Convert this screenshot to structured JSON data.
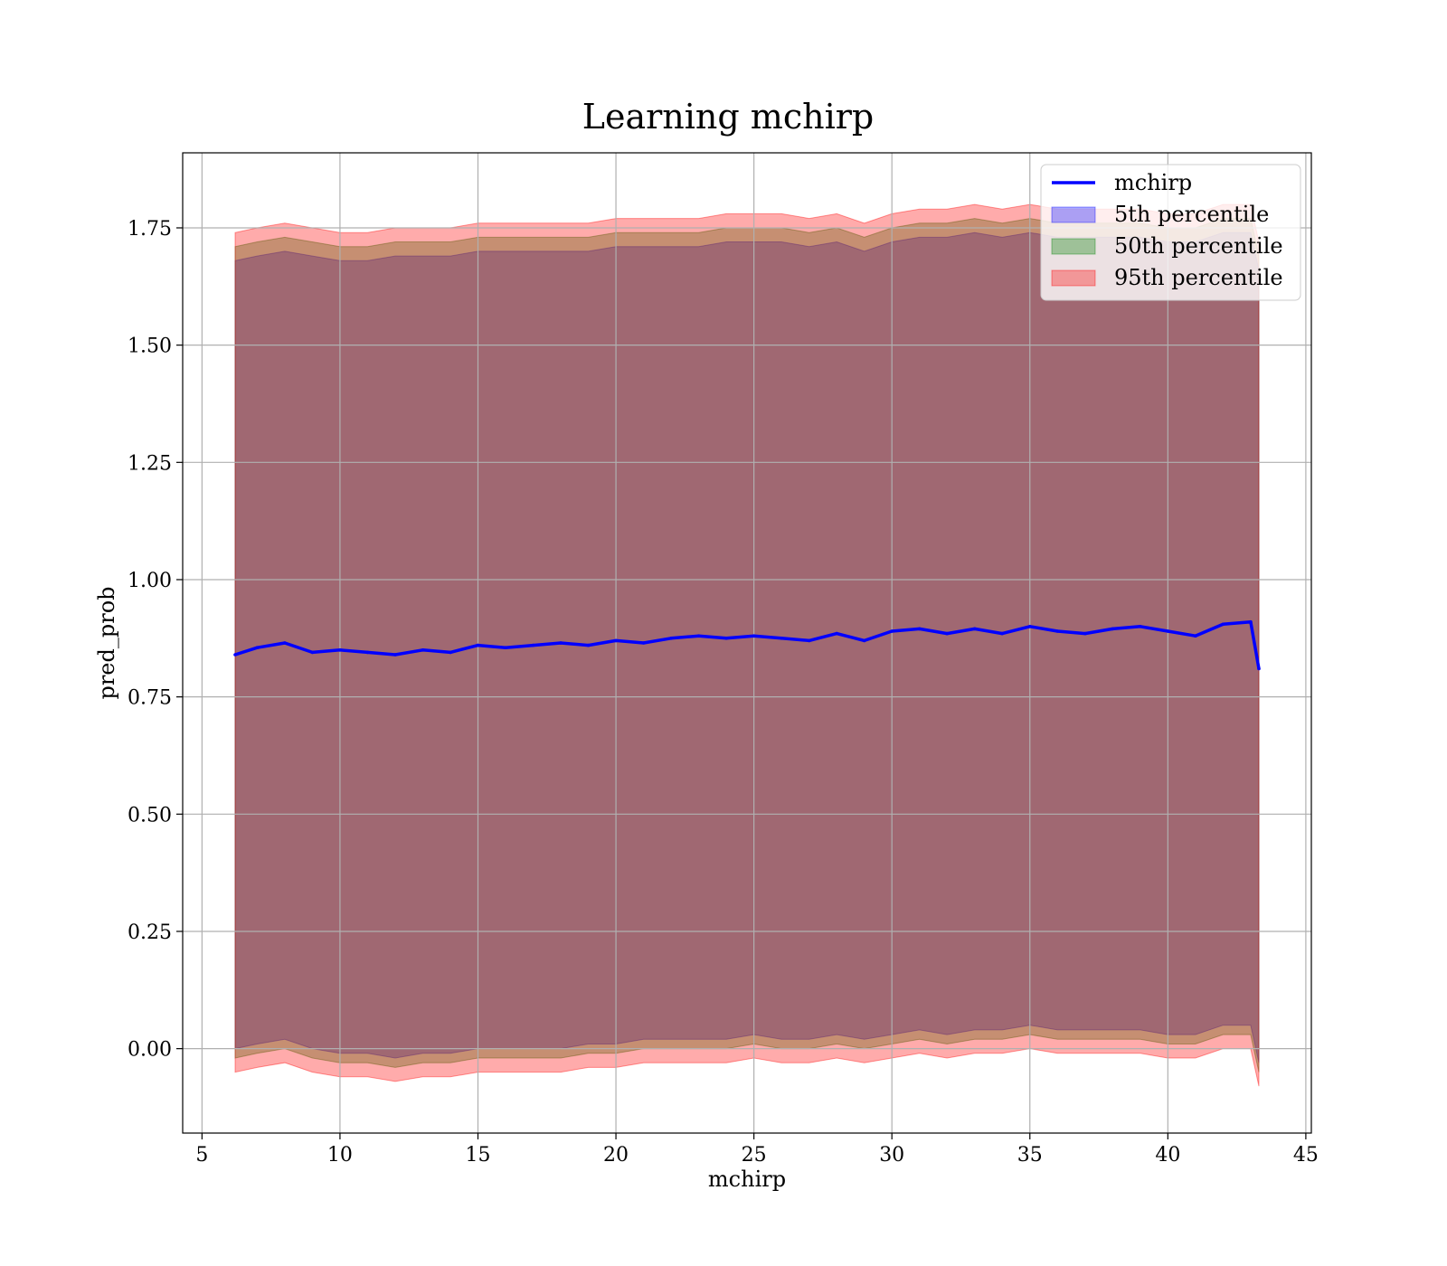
{
  "chart_data": {
    "type": "line",
    "title": "Learning mchirp",
    "xlabel": "mchirp",
    "ylabel": "pred_prob",
    "xlim": [
      4.3,
      45.2
    ],
    "ylim": [
      -0.18,
      1.91
    ],
    "xticks": [
      5,
      10,
      15,
      20,
      25,
      30,
      35,
      40,
      45
    ],
    "yticks": [
      0.0,
      0.25,
      0.5,
      0.75,
      1.0,
      1.25,
      1.5,
      1.75
    ],
    "ytick_labels": [
      "0.00",
      "0.25",
      "0.50",
      "0.75",
      "1.00",
      "1.25",
      "1.50",
      "1.75"
    ],
    "grid": true,
    "legend_position": "top-right",
    "x": [
      6.2,
      7.0,
      8.0,
      9.0,
      10.0,
      11.0,
      12.0,
      13.0,
      14.0,
      15.0,
      16.0,
      17.0,
      18.0,
      19.0,
      20.0,
      21.0,
      22.0,
      23.0,
      24.0,
      25.0,
      26.0,
      27.0,
      28.0,
      29.0,
      30.0,
      31.0,
      32.0,
      33.0,
      34.0,
      35.0,
      36.0,
      37.0,
      38.0,
      39.0,
      40.0,
      41.0,
      42.0,
      43.0,
      43.3
    ],
    "series": [
      {
        "name": "mchirp",
        "kind": "line",
        "color": "#0000ff",
        "values": [
          0.84,
          0.855,
          0.865,
          0.845,
          0.85,
          0.845,
          0.84,
          0.85,
          0.845,
          0.86,
          0.855,
          0.86,
          0.865,
          0.86,
          0.87,
          0.865,
          0.875,
          0.88,
          0.875,
          0.88,
          0.875,
          0.87,
          0.885,
          0.87,
          0.89,
          0.895,
          0.885,
          0.895,
          0.885,
          0.9,
          0.89,
          0.885,
          0.895,
          0.9,
          0.89,
          0.88,
          0.905,
          0.91,
          0.81
        ]
      },
      {
        "name": "5th percentile",
        "kind": "band",
        "color": "#0000ff",
        "lower": [
          0.0,
          0.01,
          0.02,
          0.0,
          -0.01,
          -0.01,
          -0.02,
          -0.01,
          -0.01,
          0.0,
          0.0,
          0.0,
          0.0,
          0.01,
          0.01,
          0.02,
          0.02,
          0.02,
          0.02,
          0.03,
          0.02,
          0.02,
          0.03,
          0.02,
          0.03,
          0.04,
          0.03,
          0.04,
          0.04,
          0.05,
          0.04,
          0.04,
          0.04,
          0.04,
          0.03,
          0.03,
          0.05,
          0.05,
          -0.03
        ],
        "upper": [
          1.68,
          1.69,
          1.7,
          1.69,
          1.68,
          1.68,
          1.69,
          1.69,
          1.69,
          1.7,
          1.7,
          1.7,
          1.7,
          1.7,
          1.71,
          1.71,
          1.71,
          1.71,
          1.72,
          1.72,
          1.72,
          1.71,
          1.72,
          1.7,
          1.72,
          1.73,
          1.73,
          1.74,
          1.73,
          1.74,
          1.73,
          1.73,
          1.73,
          1.73,
          1.72,
          1.72,
          1.74,
          1.74,
          1.66
        ]
      },
      {
        "name": "50th percentile",
        "kind": "band",
        "color": "#008000",
        "lower": [
          -0.02,
          -0.01,
          0.0,
          -0.02,
          -0.03,
          -0.03,
          -0.04,
          -0.03,
          -0.03,
          -0.02,
          -0.02,
          -0.02,
          -0.02,
          -0.01,
          -0.01,
          0.0,
          0.0,
          0.0,
          0.0,
          0.01,
          0.0,
          0.0,
          0.01,
          0.0,
          0.01,
          0.02,
          0.01,
          0.02,
          0.02,
          0.03,
          0.02,
          0.02,
          0.02,
          0.02,
          0.01,
          0.01,
          0.03,
          0.03,
          -0.05
        ],
        "upper": [
          1.71,
          1.72,
          1.73,
          1.72,
          1.71,
          1.71,
          1.72,
          1.72,
          1.72,
          1.73,
          1.73,
          1.73,
          1.73,
          1.73,
          1.74,
          1.74,
          1.74,
          1.74,
          1.75,
          1.75,
          1.75,
          1.74,
          1.75,
          1.73,
          1.75,
          1.76,
          1.76,
          1.77,
          1.76,
          1.77,
          1.76,
          1.76,
          1.76,
          1.76,
          1.75,
          1.75,
          1.77,
          1.77,
          1.69
        ]
      },
      {
        "name": "95th percentile",
        "kind": "band",
        "color": "#ff0000",
        "lower": [
          -0.05,
          -0.04,
          -0.03,
          -0.05,
          -0.06,
          -0.06,
          -0.07,
          -0.06,
          -0.06,
          -0.05,
          -0.05,
          -0.05,
          -0.05,
          -0.04,
          -0.04,
          -0.03,
          -0.03,
          -0.03,
          -0.03,
          -0.02,
          -0.03,
          -0.03,
          -0.02,
          -0.03,
          -0.02,
          -0.01,
          -0.02,
          -0.01,
          -0.01,
          0.0,
          -0.01,
          -0.01,
          -0.01,
          -0.01,
          -0.02,
          -0.02,
          0.0,
          0.0,
          -0.08
        ],
        "upper": [
          1.74,
          1.75,
          1.76,
          1.75,
          1.74,
          1.74,
          1.75,
          1.75,
          1.75,
          1.76,
          1.76,
          1.76,
          1.76,
          1.76,
          1.77,
          1.77,
          1.77,
          1.77,
          1.78,
          1.78,
          1.78,
          1.77,
          1.78,
          1.76,
          1.78,
          1.79,
          1.79,
          1.8,
          1.79,
          1.8,
          1.79,
          1.79,
          1.79,
          1.79,
          1.78,
          1.78,
          1.8,
          1.8,
          1.72
        ]
      }
    ]
  }
}
